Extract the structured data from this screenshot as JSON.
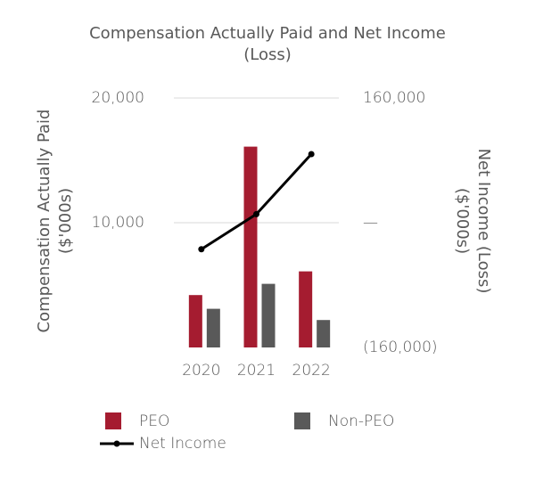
{
  "chart_data": {
    "type": "bar_line",
    "title": "Compensation Actually Paid and Net Income (Loss)",
    "y_label": "Compensation Actually Paid ($'000s)",
    "y2_label": "Net Income (Loss) ($'000s)",
    "categories": [
      "2020",
      "2021",
      "2022"
    ],
    "series": [
      {
        "name": "PEO",
        "color": "#a51c30",
        "type": "bar",
        "values": [
          4200,
          16100,
          6100
        ]
      },
      {
        "name": "Non-PEO",
        "color": "#595959",
        "type": "bar",
        "values": [
          3100,
          5100,
          2200
        ]
      },
      {
        "name": "Net Income",
        "color": "#000000",
        "type": "line",
        "axis": "y2",
        "values": [
          -34000,
          11000,
          88000
        ]
      }
    ],
    "ylim": [
      0,
      20000
    ],
    "yticks": [
      {
        "value": 10000,
        "label": "10,000"
      },
      {
        "value": 20000,
        "label": "20,000"
      }
    ],
    "y2lim": [
      -160000,
      160000
    ],
    "y2ticks": [
      {
        "value": -160000,
        "label": "(160,000)"
      },
      {
        "value": 0,
        "label": "—"
      },
      {
        "value": 160000,
        "label": "160,000"
      }
    ],
    "grid": true
  }
}
